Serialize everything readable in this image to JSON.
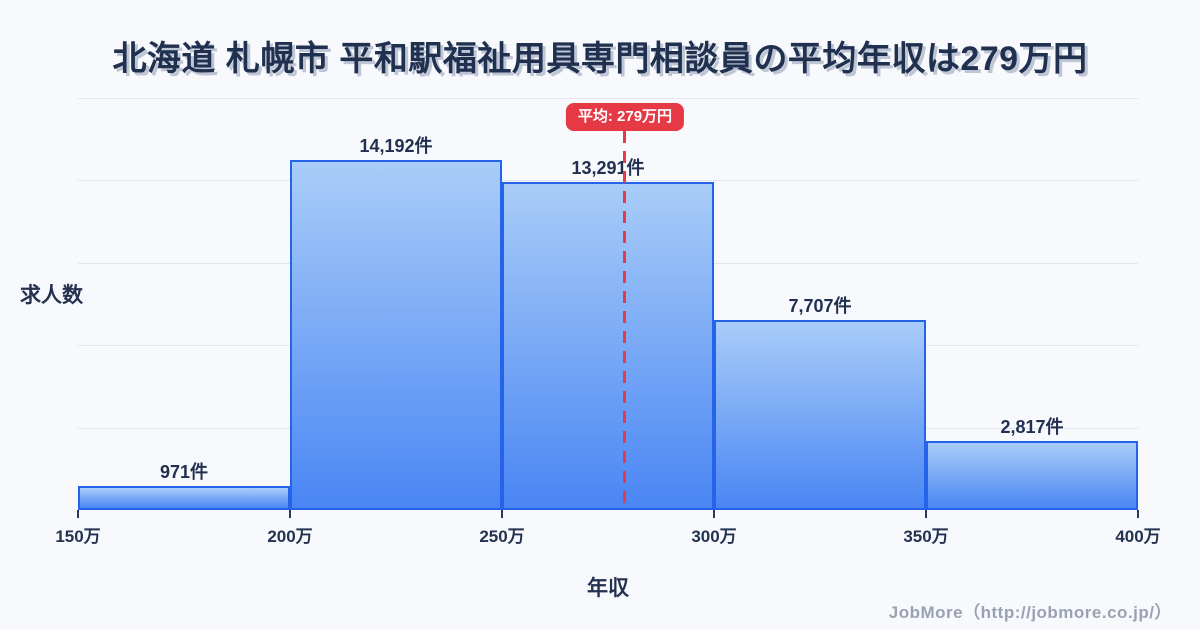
{
  "title": "北海道 札幌市 平和駅福祉用具専門相談員の平均年収は279万円",
  "chart_data": {
    "type": "bar",
    "subtype": "histogram",
    "title": "北海道 札幌市 平和駅福祉用具専門相談員の平均年収は279万円",
    "xlabel": "年収",
    "ylabel": "求人数",
    "bin_edges": [
      150,
      200,
      250,
      300,
      350,
      400
    ],
    "x_tick_labels": [
      "150万",
      "200万",
      "250万",
      "300万",
      "350万",
      "400万"
    ],
    "values": [
      971,
      14192,
      13291,
      7707,
      2817
    ],
    "bar_labels": [
      "971件",
      "14,192件",
      "13,291件",
      "7,707件",
      "2,817件"
    ],
    "ylim": [
      0,
      16700
    ],
    "y_axis_ticks_shown": false,
    "grid": "horizontal only, 5 equal intervals",
    "legend": "none",
    "average_marker": {
      "value": 279,
      "label": "平均: 279万円",
      "style": "vertical red dashed line topped by red rounded badge"
    },
    "colors": {
      "background": "#f8f9fc",
      "bar_fill_top": "#a9cdf8",
      "bar_fill_bottom": "#4a86f4",
      "bar_border": "#2563eb",
      "gridline": "#e2e6f0",
      "average_red": "#e63946",
      "text_dark": "#20304f",
      "footer_gray": "#9aa2b1"
    }
  },
  "footer": {
    "credit": "JobMore（http://jobmore.co.jp/）"
  }
}
